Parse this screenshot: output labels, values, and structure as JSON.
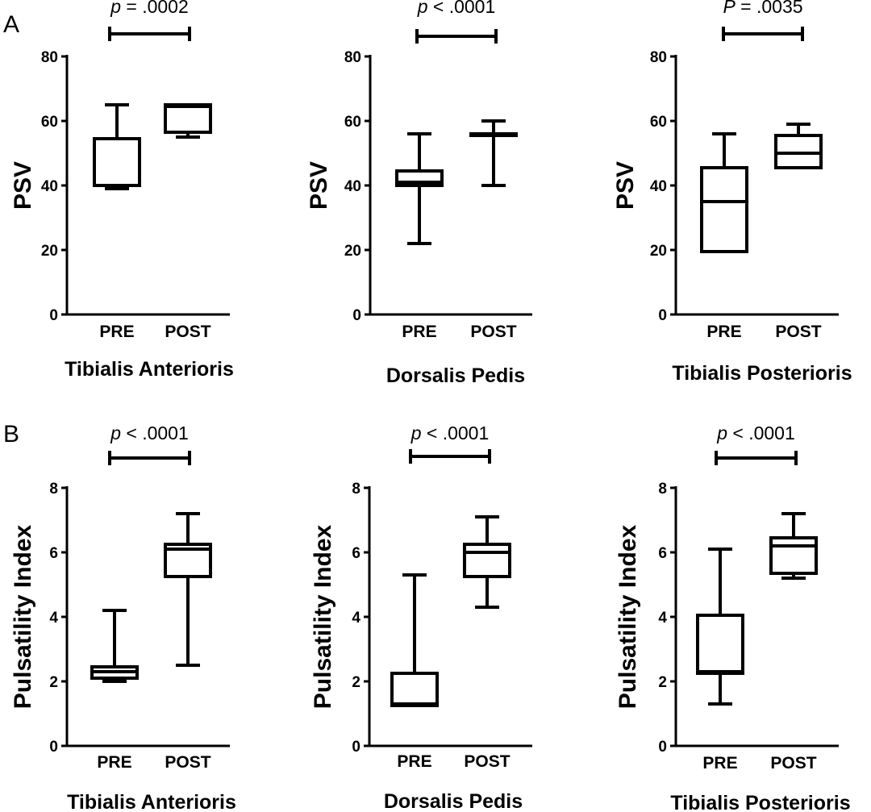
{
  "panel_labels": [
    "A",
    "B"
  ],
  "chart_data": [
    {
      "type": "boxplot",
      "panel": "A",
      "title": "Tibialis Anterioris",
      "ylabel": "PSV",
      "ylim": [
        0,
        80
      ],
      "yticks": [
        0,
        20,
        40,
        60,
        80
      ],
      "categories": [
        "PRE",
        "POST"
      ],
      "boxes": [
        {
          "min": 39,
          "q1": 40,
          "median": 40,
          "q3": 54.5,
          "max": 65
        },
        {
          "min": 55,
          "q1": 56.5,
          "median": 64.5,
          "q3": 65,
          "max": 65
        }
      ],
      "p_prefix": "p",
      "p_value": "= .0002"
    },
    {
      "type": "boxplot",
      "panel": "A",
      "title": "Dorsalis Pedis",
      "ylabel": "PSV",
      "ylim": [
        0,
        80
      ],
      "yticks": [
        0,
        20,
        40,
        60,
        80
      ],
      "categories": [
        "PRE",
        "POST"
      ],
      "boxes": [
        {
          "min": 22,
          "q1": 40,
          "median": 41,
          "q3": 44.5,
          "max": 56
        },
        {
          "min": 40,
          "q1": 55.5,
          "median": 55.5,
          "q3": 56,
          "max": 60
        }
      ],
      "p_prefix": "p",
      "p_value": "< .0001"
    },
    {
      "type": "boxplot",
      "panel": "A",
      "title": "Tibialis Posterioris",
      "ylabel": "PSV",
      "ylim": [
        0,
        80
      ],
      "yticks": [
        0,
        20,
        40,
        60,
        80
      ],
      "categories": [
        "PRE",
        "POST"
      ],
      "boxes": [
        {
          "min": 19.5,
          "q1": 19.5,
          "median": 35,
          "q3": 45.5,
          "max": 56
        },
        {
          "min": 45.5,
          "q1": 45.5,
          "median": 50,
          "q3": 55.5,
          "max": 59
        }
      ],
      "p_prefix": "P",
      "p_value": "= .0035"
    },
    {
      "type": "boxplot",
      "panel": "B",
      "title": "Tibialis Anterioris",
      "ylabel": "Pulsatility Index",
      "ylim": [
        0,
        8
      ],
      "yticks": [
        0,
        2,
        4,
        6,
        8
      ],
      "categories": [
        "PRE",
        "POST"
      ],
      "boxes": [
        {
          "min": 2.0,
          "q1": 2.1,
          "median": 2.3,
          "q3": 2.45,
          "max": 4.2
        },
        {
          "min": 2.5,
          "q1": 5.25,
          "median": 6.1,
          "q3": 6.25,
          "max": 7.2
        }
      ],
      "p_prefix": "p",
      "p_value": "< .0001"
    },
    {
      "type": "boxplot",
      "panel": "B",
      "title": "Dorsalis Pedis",
      "ylabel": "Pulsatility Index",
      "ylim": [
        0,
        8
      ],
      "yticks": [
        0,
        2,
        4,
        6,
        8
      ],
      "categories": [
        "PRE",
        "POST"
      ],
      "boxes": [
        {
          "min": 1.25,
          "q1": 1.25,
          "median": 1.3,
          "q3": 2.25,
          "max": 5.3
        },
        {
          "min": 4.3,
          "q1": 5.25,
          "median": 6.0,
          "q3": 6.25,
          "max": 7.1
        }
      ],
      "p_prefix": "p",
      "p_value": "< .0001"
    },
    {
      "type": "boxplot",
      "panel": "B",
      "title": "Tibialis Posterioris",
      "ylabel": "Pulsatility Index",
      "ylim": [
        0,
        8
      ],
      "yticks": [
        0,
        2,
        4,
        6,
        8
      ],
      "categories": [
        "PRE",
        "POST"
      ],
      "boxes": [
        {
          "min": 1.3,
          "q1": 2.25,
          "median": 2.3,
          "q3": 4.05,
          "max": 6.1
        },
        {
          "min": 5.2,
          "q1": 5.35,
          "median": 6.2,
          "q3": 6.45,
          "max": 7.2
        }
      ],
      "p_prefix": "p",
      "p_value": "< .0001"
    }
  ]
}
